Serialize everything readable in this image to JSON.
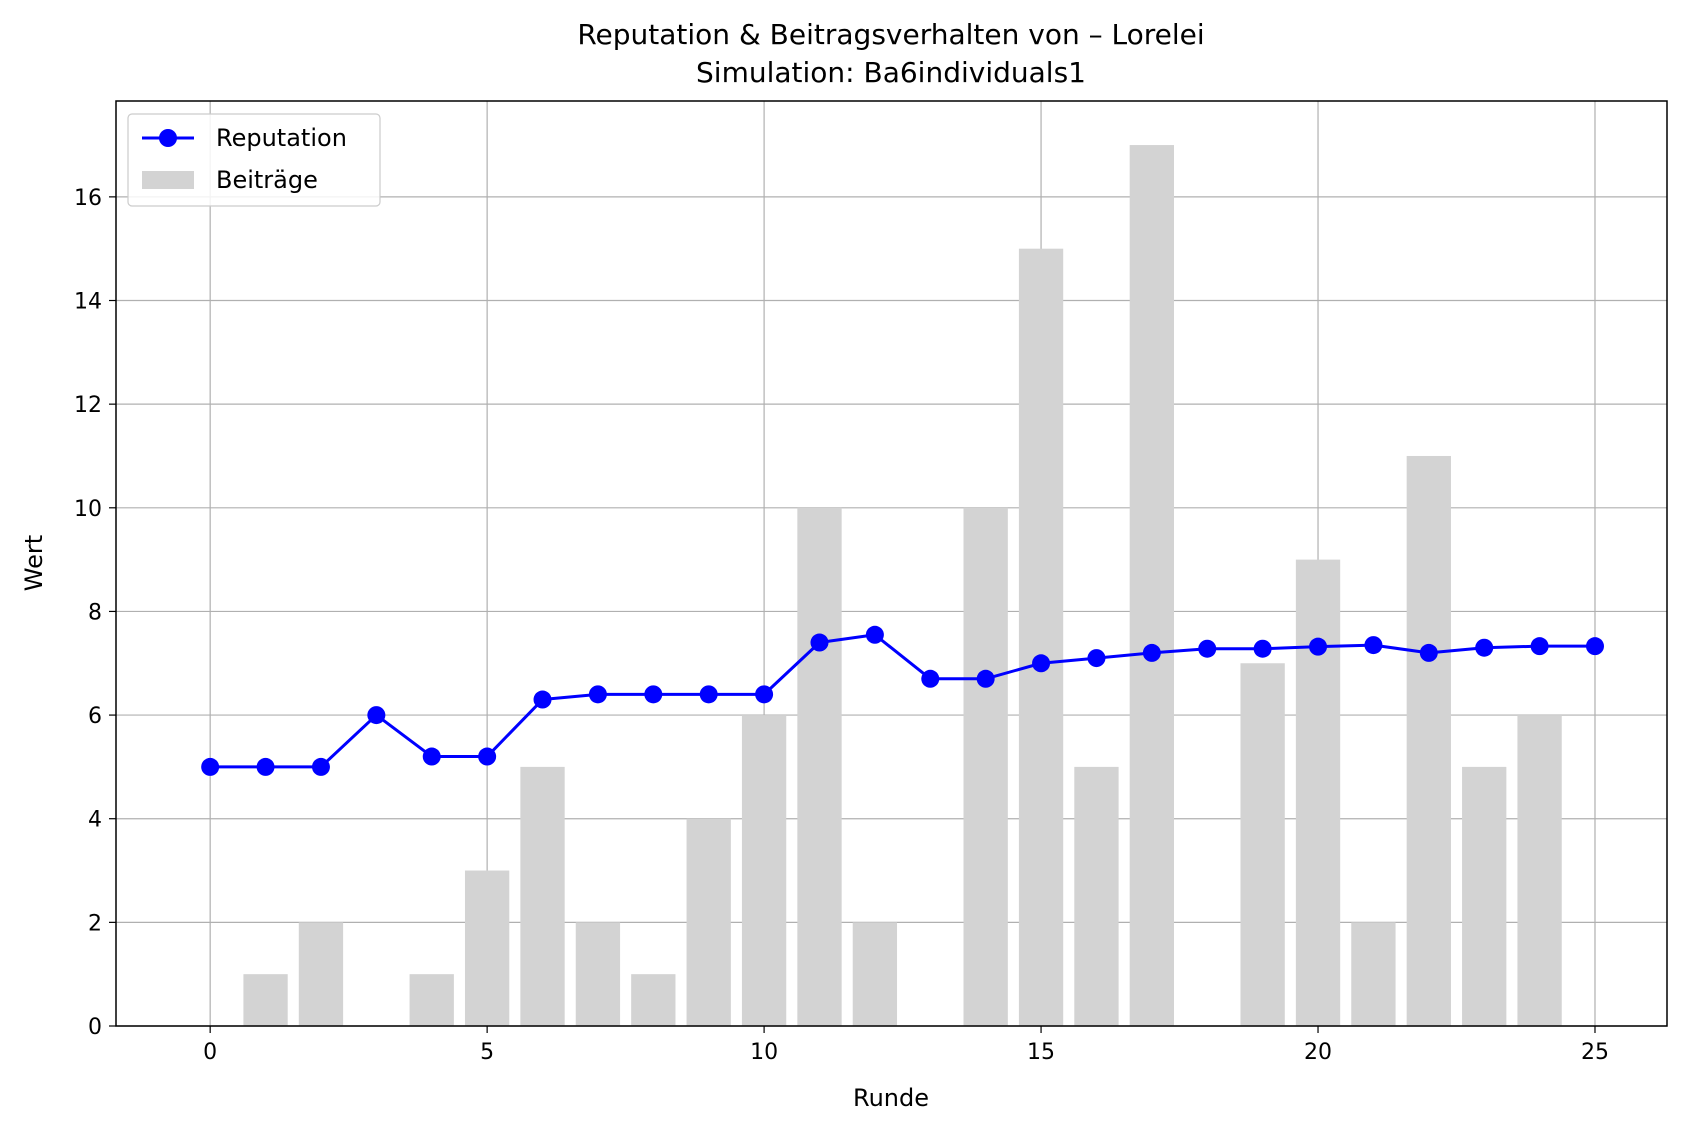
{
  "chart_data": {
    "type": "bar",
    "title": "Reputation & Beitragsverhalten von – Lorelei",
    "subtitle": "Simulation: Ba6individuals1",
    "xlabel": "Runde",
    "ylabel": "Wert",
    "xlim": [
      -1.7,
      26.3
    ],
    "ylim": [
      0,
      17.85
    ],
    "x_ticks": [
      0,
      5,
      10,
      15,
      20,
      25
    ],
    "y_ticks": [
      0,
      2,
      4,
      6,
      8,
      10,
      12,
      14,
      16
    ],
    "grid": true,
    "legend_position": "top-left",
    "x": [
      0,
      1,
      2,
      3,
      4,
      5,
      6,
      7,
      8,
      9,
      10,
      11,
      12,
      13,
      14,
      15,
      16,
      17,
      18,
      19,
      20,
      21,
      22,
      23,
      24,
      25
    ],
    "series": [
      {
        "name": "Beiträge",
        "type": "bar",
        "color": "#d3d3d3",
        "values": [
          0,
          1,
          2,
          0,
          1,
          3,
          5,
          2,
          1,
          4,
          6,
          10,
          2,
          0,
          10,
          15,
          5,
          17,
          0,
          7,
          9,
          2,
          11,
          5,
          6,
          0
        ]
      },
      {
        "name": "Reputation",
        "type": "line",
        "color": "#0000ff",
        "marker": "circle",
        "values": [
          5.0,
          5.0,
          5.0,
          6.0,
          5.2,
          5.2,
          6.3,
          6.4,
          6.4,
          6.4,
          6.4,
          7.4,
          7.55,
          6.7,
          6.7,
          7.0,
          7.1,
          7.2,
          7.28,
          7.28,
          7.32,
          7.35,
          7.2,
          7.3,
          7.33,
          7.33
        ]
      }
    ]
  }
}
